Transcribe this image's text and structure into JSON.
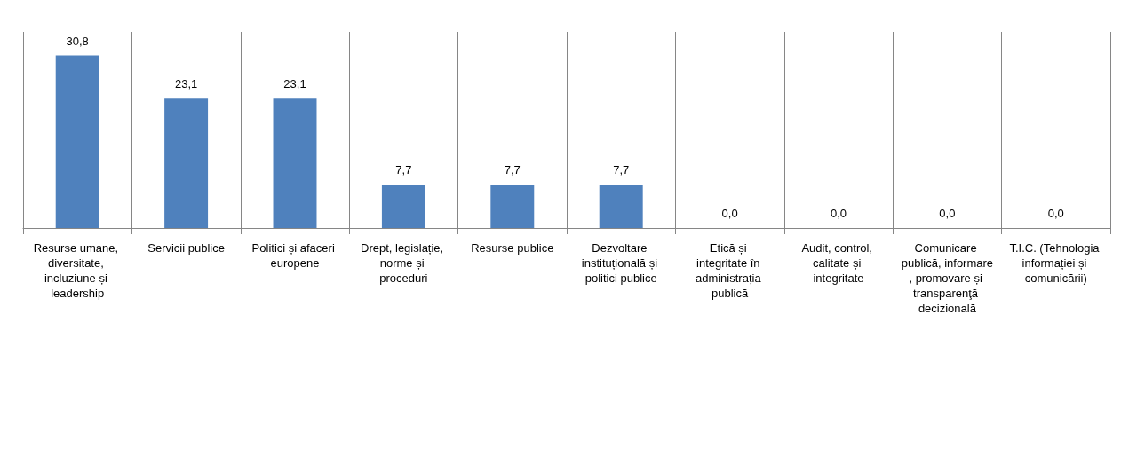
{
  "chart_data": {
    "type": "bar",
    "categories": [
      "Resurse umane, diversitate, incluziune și leadership",
      "Servicii publice",
      "Politici și afaceri europene",
      "Drept, legislație, norme și proceduri",
      "Resurse publice",
      "Dezvoltare instituțională și politici publice",
      "Etică și integritate în administrația publică",
      "Audit, control, calitate și integritate",
      "Comunicare publică, informare, promovare și transparenţă decizională",
      "T.I.C. (Tehnologia informației și comunicării)"
    ],
    "values": [
      30.8,
      23.1,
      23.1,
      7.7,
      7.7,
      7.7,
      0,
      0,
      0,
      0
    ],
    "value_labels": [
      "30,8",
      "23,1",
      "23,1",
      "7,7",
      "7,7",
      "7,7",
      "0,0",
      "0,0",
      "0,0",
      "0,0"
    ],
    "color": "#4f81bd",
    "grid": "x"
  }
}
